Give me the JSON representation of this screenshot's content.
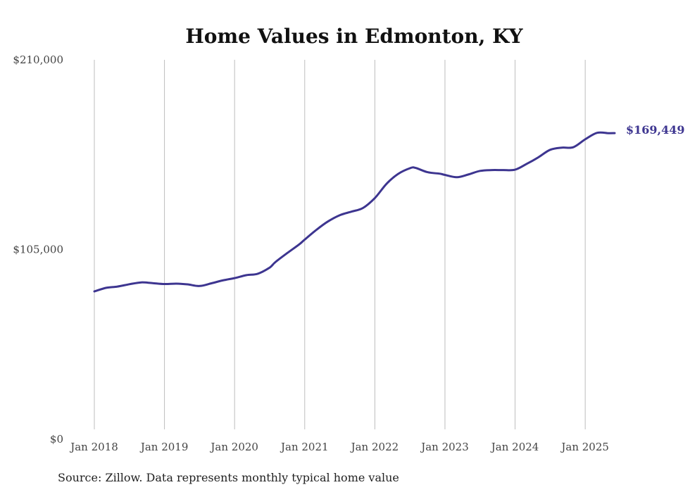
{
  "chart_data": {
    "type": "line",
    "title": "Home Values in Edmonton, KY",
    "xlabel": "",
    "ylabel": "",
    "ylim": [
      0,
      210000
    ],
    "yticks": [
      {
        "value": 0,
        "label": "$0"
      },
      {
        "value": 105000,
        "label": "$105,000"
      },
      {
        "value": 210000,
        "label": "$210,000"
      }
    ],
    "xticks": [
      {
        "value": 2018.0,
        "label": "Jan 2018"
      },
      {
        "value": 2019.0,
        "label": "Jan 2019"
      },
      {
        "value": 2020.0,
        "label": "Jan 2020"
      },
      {
        "value": 2021.0,
        "label": "Jan 2021"
      },
      {
        "value": 2022.0,
        "label": "Jan 2022"
      },
      {
        "value": 2023.0,
        "label": "Jan 2023"
      },
      {
        "value": 2024.0,
        "label": "Jan 2024"
      },
      {
        "value": 2025.0,
        "label": "Jan 2025"
      }
    ],
    "xlim": [
      2018.0,
      2025.42
    ],
    "grid": {
      "vertical": true,
      "horizontal": false
    },
    "line_color": "#3d3590",
    "end_label": "$169,449",
    "series": [
      {
        "x": [
          2018.0,
          2018.17,
          2018.33,
          2018.5,
          2018.67,
          2018.83,
          2019.0,
          2019.17,
          2019.33,
          2019.5,
          2019.67,
          2019.83,
          2020.0,
          2020.17,
          2020.33,
          2020.5,
          2020.58,
          2020.75,
          2020.92,
          2021.0,
          2021.17,
          2021.33,
          2021.5,
          2021.67,
          2021.83,
          2022.0,
          2022.17,
          2022.33,
          2022.5,
          2022.58,
          2022.75,
          2022.92,
          2023.0,
          2023.17,
          2023.33,
          2023.5,
          2023.67,
          2023.83,
          2024.0,
          2024.17,
          2024.33,
          2024.5,
          2024.67,
          2024.83,
          2025.0,
          2025.17,
          2025.33,
          2025.42
        ],
        "values": [
          81800,
          83800,
          84500,
          85800,
          86800,
          86400,
          85900,
          86100,
          85700,
          84800,
          86300,
          87900,
          89200,
          90800,
          91600,
          95000,
          98000,
          103000,
          107800,
          110500,
          116000,
          120500,
          124000,
          126000,
          128000,
          133500,
          141500,
          146800,
          150000,
          150200,
          147800,
          147000,
          146300,
          145000,
          146500,
          148500,
          149000,
          149000,
          149200,
          152500,
          156000,
          160200,
          161400,
          161600,
          166000,
          169600,
          169400,
          169449
        ]
      }
    ]
  },
  "source": "Source: Zillow. Data represents monthly typical home value"
}
